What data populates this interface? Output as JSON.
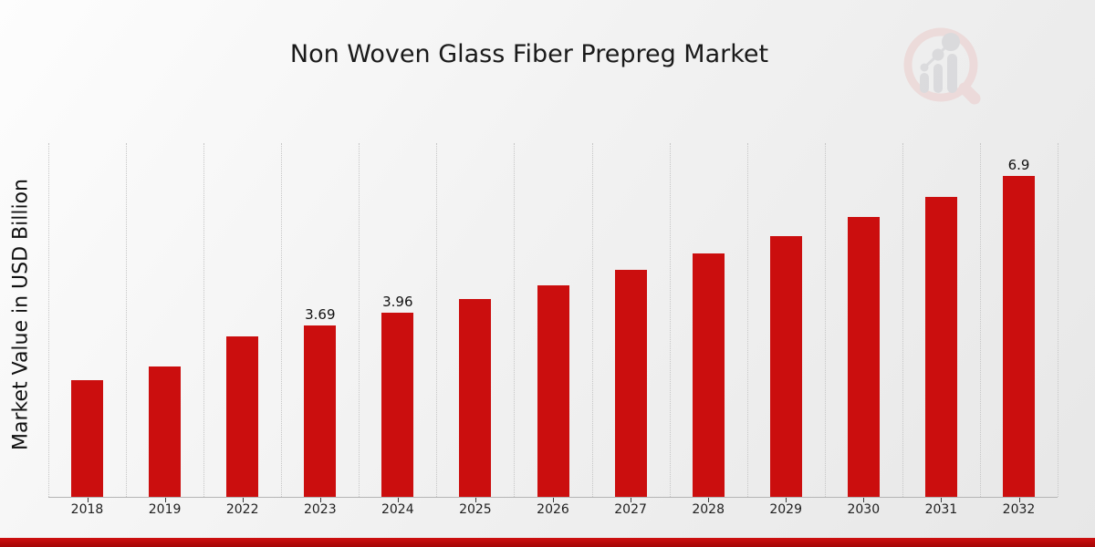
{
  "title": "Non Woven Glass Fiber Prepreg Market",
  "ylabel": "Market Value in USD Billion",
  "watermark_icon": "magnifier-bar-chart-logo",
  "colors": {
    "bar": "#cb0e0e",
    "footer_band": "#b40a0a",
    "gridline": "#c6c6c6",
    "title_text": "#1a1a1a",
    "logo_ring": "#ecd9d8",
    "logo_bars": "#d9d9dc"
  },
  "chart_data": {
    "type": "bar",
    "title": "Non Woven Glass Fiber Prepreg Market",
    "xlabel": "",
    "ylabel": "Market Value in USD Billion",
    "categories": [
      "2018",
      "2019",
      "2022",
      "2023",
      "2024",
      "2025",
      "2026",
      "2027",
      "2028",
      "2029",
      "2030",
      "2031",
      "2032"
    ],
    "values": [
      2.51,
      2.8,
      3.45,
      3.69,
      3.96,
      4.25,
      4.55,
      4.88,
      5.23,
      5.61,
      6.01,
      6.44,
      6.9
    ],
    "data_labels": {
      "2023": "3.69",
      "2024": "3.96",
      "2032": "6.9"
    },
    "ylim": [
      0,
      7.6
    ],
    "grid": "vertical-dotted",
    "legend": "none"
  }
}
